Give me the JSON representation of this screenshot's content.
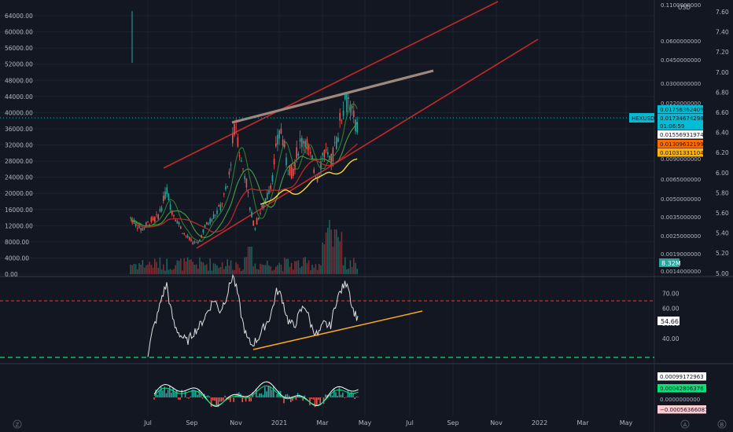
{
  "chart_data": [
    {
      "panel": "price",
      "type": "candlestick",
      "x_axis_ticks": [
        "Jul",
        "Sep",
        "Nov",
        "2021",
        "Mar",
        "May",
        "Jul",
        "Sep",
        "Nov",
        "2022",
        "Mar",
        "May"
      ],
      "left_axis_ticks": [
        0,
        4000,
        8000,
        12000,
        16000,
        20000,
        24000,
        28000,
        32000,
        36000,
        40000,
        44000,
        48000,
        52000,
        56000,
        60000,
        64000
      ],
      "left_axis_labels": [
        "0.00",
        "4000.00",
        "8000.00",
        "12000.00",
        "16000.00",
        "20000.00",
        "24000.00",
        "28000.00",
        "32000.00",
        "36000.00",
        "40000.00",
        "44000.00",
        "48000.00",
        "52000.00",
        "56000.00",
        "60000.00",
        "64000.00"
      ],
      "mid_axis_labels": [
        "0.1100000000",
        "0.0600000000",
        "0.0450000000",
        "0.0300000000",
        "0.0220000000",
        "0.0120000000",
        "0.0090000000",
        "0.0065000000",
        "0.0050000000",
        "0.0035000000",
        "0.0025000000",
        "0.0019000000",
        "0.0014000000"
      ],
      "mid_axis_unit": "USD",
      "right_axis_labels": [
        "7.60",
        "7.40",
        "7.20",
        "7.00",
        "6.80",
        "6.60",
        "6.40",
        "6.20",
        "6.00",
        "5.80",
        "5.60",
        "5.40",
        "5.20",
        "5.00"
      ],
      "symbol_tag": "HEXUSD",
      "price_labels": [
        {
          "text": "0.01756362409",
          "color": "#00bcd4",
          "text_color": "#131722"
        },
        {
          "text": "0.01734674298",
          "color": "#00bcd4",
          "text_color": "#131722"
        },
        {
          "text": "01:06:59",
          "color": "#00bcd4",
          "text_color": "#131722"
        },
        {
          "text": "0.01556931974",
          "color": "#ffffff",
          "text_color": "#131722"
        },
        {
          "text": "0.01309632199",
          "color": "#ff6d00",
          "text_color": "#131722"
        },
        {
          "text": "0.01031331104",
          "color": "#ffb300",
          "text_color": "#131722"
        }
      ],
      "volume_label": "8.32M",
      "current_price_line": 0.01734674298,
      "annotations": [
        "ascending red channel upper line",
        "ascending red channel lower line",
        "tan resistance trendline",
        "yellow moving average",
        "green moving averages"
      ]
    },
    {
      "panel": "rsi",
      "type": "line",
      "axis_labels": [
        "70.00",
        "60.00",
        "50.00",
        "40.00"
      ],
      "current_value_label": "54.66",
      "overbought_level": 65,
      "oversold_level": 30,
      "annotations": [
        "orange ascending support trendline"
      ]
    },
    {
      "panel": "macd",
      "type": "histogram",
      "value_labels": [
        {
          "text": "0.00099172963",
          "color": "#ffffff"
        },
        {
          "text": "0.00042806376",
          "color": "#00e676"
        },
        {
          "text": "0.0000000000",
          "color": "none"
        },
        {
          "text": "−0.00056366087",
          "color": "#ffcdd2"
        }
      ]
    }
  ],
  "footer": {
    "left_icon_letter": "Z",
    "auto_label": "A",
    "scale_label": "B"
  },
  "colors": {
    "background": "#131722",
    "grid": "#1e2230",
    "up": "#26a69a",
    "down": "#ef5350",
    "channel": "#e53935",
    "trend": "#a1887f",
    "rsi": "#ffffff",
    "rsi_trend": "#f9a825",
    "ma_yellow": "#fdd835",
    "ma_green": "#2e7d32",
    "dash_red": "#e53935",
    "dash_green": "#00e676"
  }
}
